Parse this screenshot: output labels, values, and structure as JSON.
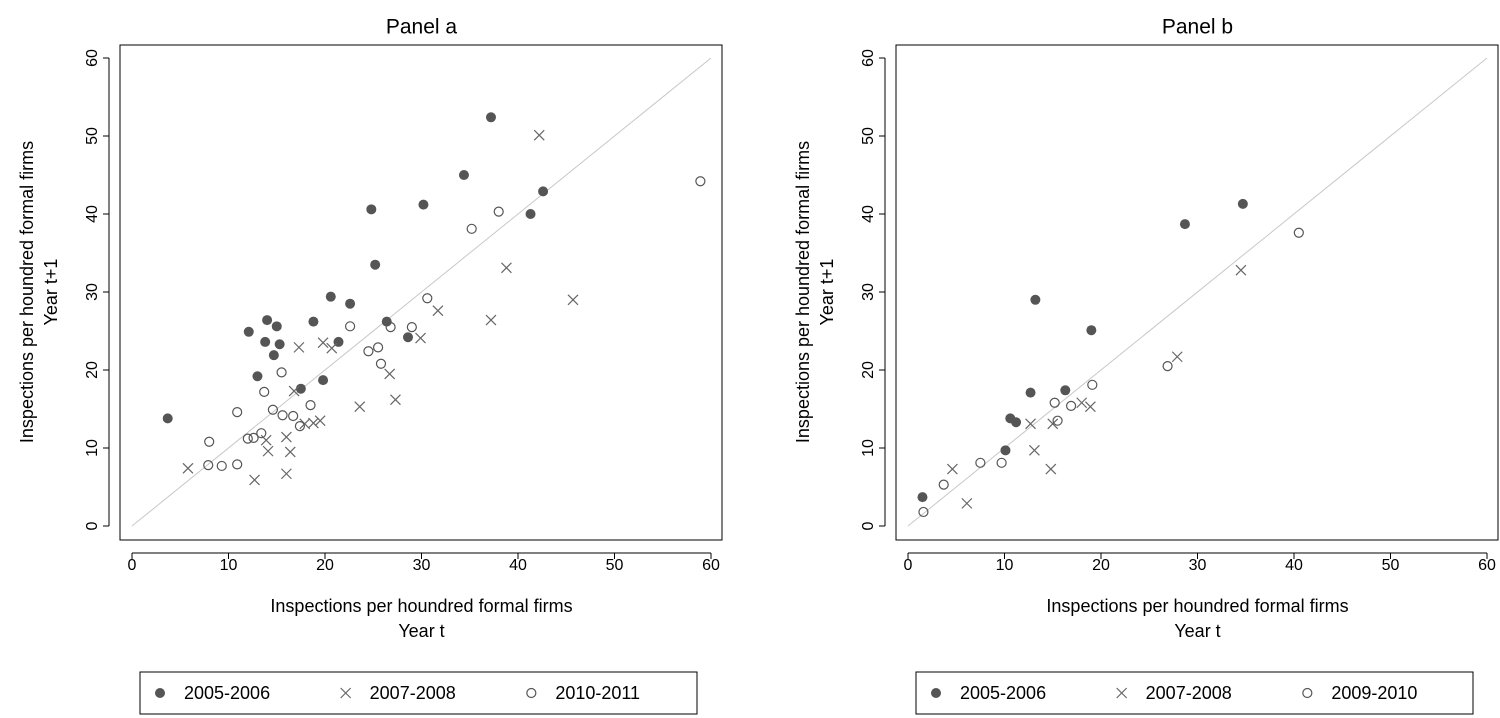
{
  "chart_data": [
    {
      "type": "scatter",
      "title": "Panel a",
      "xlabel": [
        "Inspections per houndred formal firms",
        "Year t"
      ],
      "ylabel": [
        "Inspections per houndred formal firms",
        "Year t+1"
      ],
      "xlim": [
        0,
        60
      ],
      "ylim": [
        0,
        60
      ],
      "xticks": [
        0,
        10,
        20,
        30,
        40,
        50,
        60
      ],
      "yticks": [
        0,
        10,
        20,
        30,
        40,
        50,
        60
      ],
      "diagonal": true,
      "series": [
        {
          "name": "2005-2006",
          "marker": "filled-circle",
          "color": "#555555",
          "x": [
            3.7,
            12.1,
            14.0,
            15.0,
            13.8,
            15.3,
            14.7,
            13.0,
            17.5,
            18.8,
            19.8,
            20.6,
            21.4,
            22.6,
            24.8,
            25.2,
            26.4,
            28.6,
            30.2,
            34.4,
            37.2,
            41.3,
            42.6
          ],
          "y": [
            13.8,
            24.9,
            26.4,
            25.6,
            23.6,
            23.3,
            21.9,
            19.2,
            17.6,
            26.2,
            18.7,
            29.4,
            23.6,
            28.5,
            40.6,
            33.5,
            26.2,
            24.2,
            41.2,
            45.0,
            52.4,
            40.0,
            42.9
          ]
        },
        {
          "name": "2007-2008",
          "marker": "x",
          "color": "#666666",
          "x": [
            5.8,
            12.7,
            13.9,
            14.1,
            16.0,
            16.0,
            16.4,
            16.8,
            17.3,
            17.9,
            18.8,
            19.5,
            19.8,
            20.7,
            23.6,
            26.7,
            27.3,
            31.7,
            29.9,
            37.2,
            38.8,
            42.2,
            45.7
          ],
          "y": [
            7.4,
            5.9,
            11.0,
            9.6,
            6.7,
            11.4,
            9.5,
            17.3,
            22.9,
            13.1,
            13.2,
            13.5,
            23.5,
            22.8,
            15.3,
            19.5,
            16.2,
            27.6,
            24.1,
            26.4,
            33.1,
            50.1,
            29.0
          ]
        },
        {
          "name": "2010-2011",
          "marker": "hollow-circle",
          "color": "#555555",
          "x": [
            8.0,
            7.9,
            9.3,
            10.9,
            10.9,
            12.0,
            12.6,
            13.4,
            13.7,
            14.6,
            15.5,
            15.6,
            16.7,
            17.4,
            18.5,
            22.6,
            24.5,
            25.5,
            25.8,
            26.8,
            29.0,
            30.6,
            35.2,
            38.0,
            58.9
          ],
          "y": [
            10.8,
            7.8,
            7.7,
            7.9,
            14.6,
            11.2,
            11.3,
            11.9,
            17.2,
            14.9,
            19.7,
            14.2,
            14.1,
            12.8,
            15.5,
            25.6,
            22.4,
            22.9,
            20.8,
            25.5,
            25.5,
            29.2,
            38.1,
            40.3,
            44.2
          ]
        }
      ]
    },
    {
      "type": "scatter",
      "title": "Panel b",
      "xlabel": [
        "Inspections per houndred formal firms",
        "Year t"
      ],
      "ylabel": [
        "Inspections per houndred formal firms",
        "Year t+1"
      ],
      "xlim": [
        0,
        60
      ],
      "ylim": [
        0,
        60
      ],
      "xticks": [
        0,
        10,
        20,
        30,
        40,
        50,
        60
      ],
      "yticks": [
        0,
        10,
        20,
        30,
        40,
        50,
        60
      ],
      "diagonal": true,
      "series": [
        {
          "name": "2005-2006",
          "marker": "filled-circle",
          "color": "#555555",
          "x": [
            1.5,
            10.1,
            10.6,
            11.2,
            12.7,
            13.2,
            16.3,
            19.0,
            28.7,
            34.7
          ],
          "y": [
            3.7,
            9.7,
            13.8,
            13.3,
            17.1,
            29.0,
            17.4,
            25.1,
            38.7,
            41.3
          ]
        },
        {
          "name": "2007-2008",
          "marker": "x",
          "color": "#666666",
          "x": [
            4.6,
            6.1,
            12.7,
            13.1,
            14.8,
            15.0,
            18.0,
            18.9,
            27.9,
            34.5
          ],
          "y": [
            7.3,
            2.9,
            13.1,
            9.7,
            7.3,
            13.1,
            15.8,
            15.3,
            21.7,
            32.8
          ]
        },
        {
          "name": "2009-2010",
          "marker": "hollow-circle",
          "color": "#555555",
          "x": [
            1.6,
            3.7,
            7.5,
            9.7,
            15.2,
            15.5,
            16.9,
            19.1,
            26.9,
            40.5
          ],
          "y": [
            1.8,
            5.3,
            8.1,
            8.1,
            15.8,
            13.5,
            15.4,
            18.1,
            20.5,
            37.6
          ]
        }
      ]
    }
  ]
}
